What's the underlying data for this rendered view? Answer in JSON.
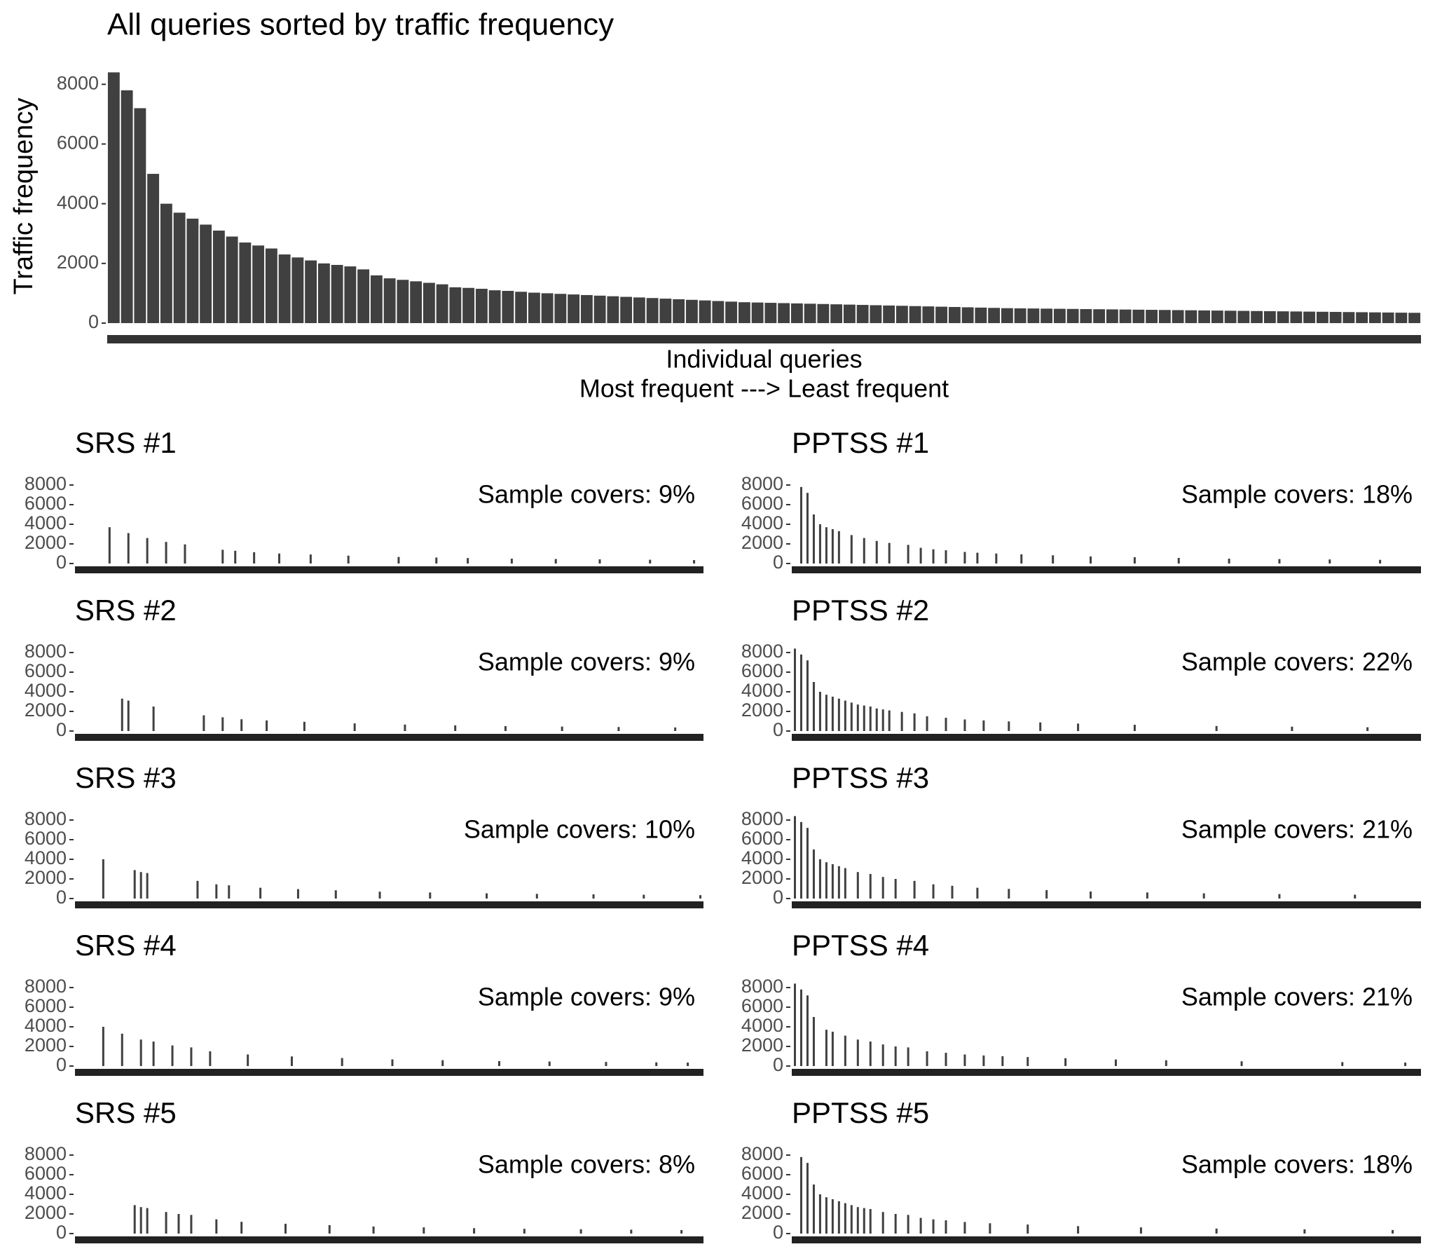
{
  "chart_data": [
    {
      "type": "bar",
      "title": "All queries sorted by traffic frequency",
      "ylabel": "Traffic frequency",
      "xlabel": [
        "Individual queries",
        "Most frequent  ---> Least frequent"
      ],
      "color": "#404040",
      "ylim": [
        0,
        8500
      ],
      "yticks": [
        0,
        2000,
        4000,
        6000,
        8000
      ],
      "values": [
        8400,
        7800,
        7200,
        5000,
        4000,
        3700,
        3500,
        3300,
        3100,
        2900,
        2700,
        2600,
        2500,
        2300,
        2200,
        2100,
        2000,
        1950,
        1900,
        1800,
        1600,
        1500,
        1450,
        1400,
        1350,
        1300,
        1200,
        1180,
        1150,
        1100,
        1080,
        1050,
        1020,
        1000,
        980,
        960,
        940,
        920,
        900,
        880,
        860,
        840,
        820,
        800,
        780,
        760,
        740,
        720,
        700,
        690,
        680,
        670,
        660,
        650,
        640,
        630,
        620,
        610,
        600,
        590,
        580,
        570,
        560,
        550,
        540,
        530,
        520,
        510,
        500,
        495,
        490,
        485,
        480,
        475,
        470,
        465,
        460,
        455,
        450,
        445,
        440,
        435,
        430,
        425,
        420,
        415,
        410,
        405,
        400,
        395,
        390,
        385,
        380,
        375,
        370,
        365,
        360,
        355,
        350,
        345
      ]
    },
    {
      "type": "bar",
      "title": "SRS #1",
      "annotation": "Sample covers: 9%",
      "color": "#404040",
      "xlim": [
        0.5,
        100.5
      ],
      "ylim": [
        0,
        8500
      ],
      "yticks": [
        0,
        2000,
        4000,
        6000,
        8000
      ],
      "x": [
        6,
        9,
        12,
        15,
        18,
        24,
        26,
        29,
        33,
        38,
        44,
        52,
        58,
        63,
        70,
        77,
        84,
        92,
        99
      ],
      "values": [
        3700,
        3100,
        2600,
        2200,
        1950,
        1400,
        1300,
        1150,
        1020,
        920,
        800,
        670,
        610,
        560,
        495,
        460,
        425,
        385,
        350
      ]
    },
    {
      "type": "bar",
      "title": "PPTSS #1",
      "annotation": "Sample covers: 18%",
      "color": "#404040",
      "xlim": [
        0.5,
        100.5
      ],
      "ylim": [
        0,
        8500
      ],
      "yticks": [
        0,
        2000,
        4000,
        6000,
        8000
      ],
      "x": [
        2,
        3,
        4,
        5,
        6,
        7,
        8,
        10,
        12,
        14,
        16,
        19,
        21,
        23,
        25,
        28,
        30,
        33,
        37,
        42,
        48,
        55,
        62,
        70,
        78,
        86,
        94
      ],
      "values": [
        7800,
        7200,
        5000,
        4000,
        3700,
        3500,
        3300,
        2900,
        2600,
        2300,
        2100,
        1900,
        1600,
        1450,
        1350,
        1180,
        1100,
        1020,
        940,
        840,
        720,
        640,
        570,
        495,
        455,
        415,
        375
      ]
    },
    {
      "type": "bar",
      "title": "SRS #2",
      "annotation": "Sample covers: 9%",
      "color": "#404040",
      "xlim": [
        0.5,
        100.5
      ],
      "ylim": [
        0,
        8500
      ],
      "yticks": [
        0,
        2000,
        4000,
        6000,
        8000
      ],
      "x": [
        8,
        9,
        13,
        21,
        24,
        27,
        31,
        37,
        45,
        53,
        61,
        69,
        78,
        87,
        96
      ],
      "values": [
        3300,
        3100,
        2500,
        1600,
        1400,
        1200,
        1080,
        940,
        780,
        660,
        580,
        500,
        455,
        410,
        365
      ]
    },
    {
      "type": "bar",
      "title": "PPTSS #2",
      "annotation": "Sample covers: 22%",
      "color": "#404040",
      "xlim": [
        0.5,
        100.5
      ],
      "ylim": [
        0,
        8500
      ],
      "yticks": [
        0,
        2000,
        4000,
        6000,
        8000
      ],
      "x": [
        1,
        2,
        3,
        4,
        5,
        6,
        7,
        8,
        9,
        10,
        11,
        12,
        13,
        14,
        15,
        16,
        18,
        20,
        22,
        25,
        28,
        31,
        35,
        40,
        46,
        55,
        68,
        80,
        92
      ],
      "values": [
        8400,
        7800,
        7200,
        5000,
        4000,
        3700,
        3500,
        3300,
        3100,
        2900,
        2700,
        2600,
        2500,
        2300,
        2200,
        2100,
        1950,
        1800,
        1500,
        1350,
        1180,
        1080,
        980,
        880,
        760,
        640,
        510,
        445,
        385
      ]
    },
    {
      "type": "bar",
      "title": "SRS #3",
      "annotation": "Sample covers: 10%",
      "color": "#404040",
      "xlim": [
        0.5,
        100.5
      ],
      "ylim": [
        0,
        8500
      ],
      "yticks": [
        0,
        2000,
        4000,
        6000,
        8000
      ],
      "x": [
        5,
        10,
        11,
        12,
        20,
        23,
        25,
        30,
        36,
        42,
        49,
        57,
        66,
        74,
        83,
        91,
        100
      ],
      "values": [
        4000,
        2900,
        2700,
        2600,
        1800,
        1450,
        1350,
        1100,
        960,
        840,
        700,
        620,
        530,
        475,
        430,
        390,
        345
      ]
    },
    {
      "type": "bar",
      "title": "PPTSS #3",
      "annotation": "Sample covers: 21%",
      "color": "#404040",
      "xlim": [
        0.5,
        100.5
      ],
      "ylim": [
        0,
        8500
      ],
      "yticks": [
        0,
        2000,
        4000,
        6000,
        8000
      ],
      "x": [
        1,
        2,
        3,
        4,
        5,
        6,
        7,
        8,
        9,
        11,
        13,
        15,
        17,
        20,
        23,
        26,
        30,
        35,
        41,
        48,
        57,
        66,
        78,
        90
      ],
      "values": [
        8400,
        7800,
        7200,
        5000,
        4000,
        3700,
        3500,
        3300,
        3100,
        2700,
        2500,
        2200,
        2000,
        1800,
        1450,
        1300,
        1100,
        980,
        860,
        720,
        620,
        530,
        455,
        395
      ]
    },
    {
      "type": "bar",
      "title": "SRS #4",
      "annotation": "Sample covers: 9%",
      "color": "#404040",
      "xlim": [
        0.5,
        100.5
      ],
      "ylim": [
        0,
        8500
      ],
      "yticks": [
        0,
        2000,
        4000,
        6000,
        8000
      ],
      "x": [
        5,
        8,
        11,
        13,
        16,
        19,
        22,
        28,
        35,
        43,
        51,
        59,
        68,
        76,
        85,
        93,
        98
      ],
      "values": [
        4000,
        3300,
        2700,
        2500,
        2100,
        1900,
        1500,
        1180,
        980,
        820,
        680,
        600,
        510,
        465,
        420,
        380,
        355
      ]
    },
    {
      "type": "bar",
      "title": "PPTSS #4",
      "annotation": "Sample covers: 21%",
      "color": "#404040",
      "xlim": [
        0.5,
        100.5
      ],
      "ylim": [
        0,
        8500
      ],
      "yticks": [
        0,
        2000,
        4000,
        6000,
        8000
      ],
      "x": [
        1,
        2,
        3,
        4,
        6,
        7,
        9,
        11,
        13,
        15,
        17,
        19,
        22,
        25,
        28,
        31,
        34,
        38,
        44,
        52,
        60,
        72,
        88,
        98
      ],
      "values": [
        8400,
        7800,
        7200,
        5000,
        3700,
        3500,
        3100,
        2700,
        2500,
        2200,
        2000,
        1900,
        1500,
        1350,
        1180,
        1080,
        1000,
        920,
        800,
        670,
        590,
        485,
        405,
        355
      ]
    },
    {
      "type": "bar",
      "title": "SRS #5",
      "annotation": "Sample covers: 8%",
      "color": "#404040",
      "xlim": [
        0.5,
        100.5
      ],
      "ylim": [
        0,
        8500
      ],
      "yticks": [
        0,
        2000,
        4000,
        6000,
        8000
      ],
      "x": [
        10,
        11,
        12,
        15,
        17,
        19,
        23,
        27,
        34,
        41,
        48,
        56,
        64,
        72,
        81,
        89,
        97
      ],
      "values": [
        2900,
        2700,
        2600,
        2200,
        2000,
        1900,
        1450,
        1200,
        1000,
        860,
        720,
        630,
        550,
        485,
        440,
        400,
        360
      ]
    },
    {
      "type": "bar",
      "title": "PPTSS #5",
      "annotation": "Sample covers: 18%",
      "color": "#404040",
      "xlim": [
        0.5,
        100.5
      ],
      "ylim": [
        0,
        8500
      ],
      "yticks": [
        0,
        2000,
        4000,
        6000,
        8000
      ],
      "x": [
        2,
        3,
        4,
        5,
        6,
        7,
        8,
        9,
        10,
        11,
        12,
        13,
        15,
        17,
        19,
        21,
        23,
        25,
        28,
        32,
        38,
        46,
        56,
        68,
        82,
        96
      ],
      "values": [
        7800,
        7200,
        5000,
        4000,
        3700,
        3500,
        3300,
        3100,
        2900,
        2700,
        2600,
        2500,
        2200,
        2000,
        1900,
        1600,
        1450,
        1350,
        1180,
        1050,
        920,
        760,
        630,
        510,
        435,
        365
      ]
    }
  ]
}
